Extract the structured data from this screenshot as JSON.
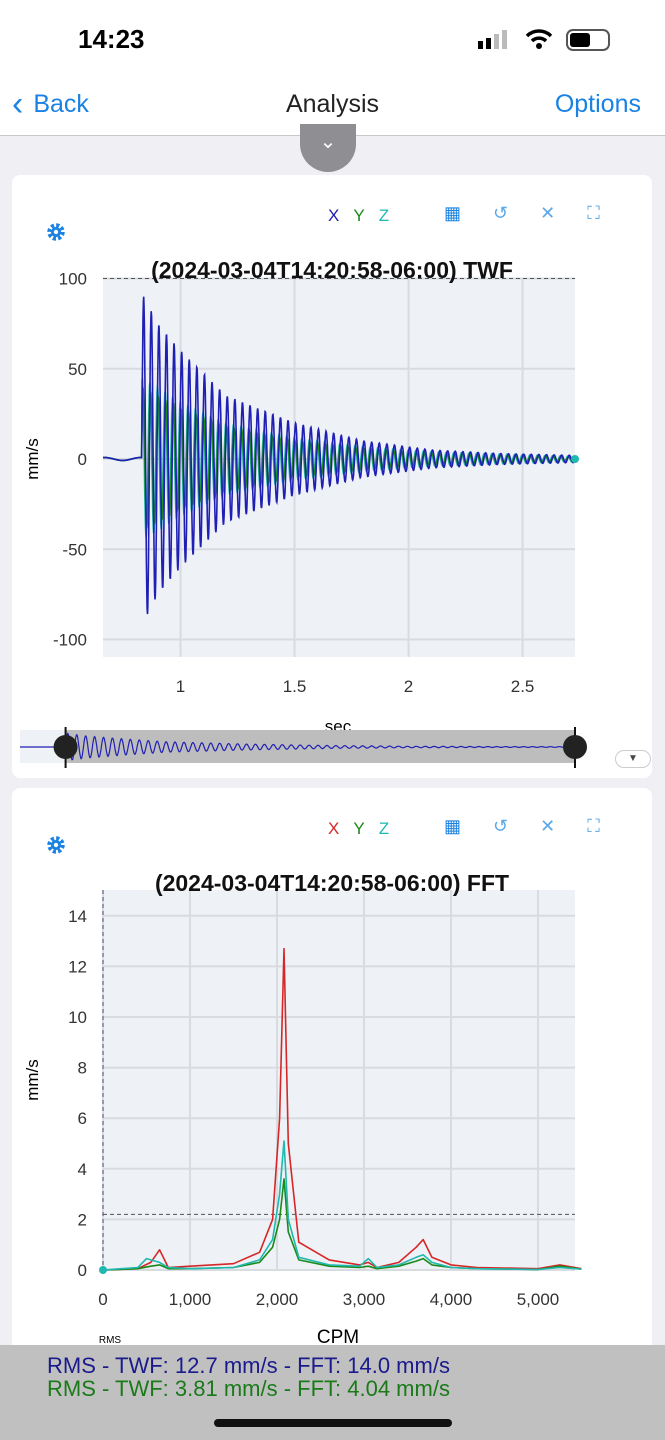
{
  "status_bar": {
    "time": "14:23"
  },
  "nav": {
    "back_label": "Back",
    "title": "Analysis",
    "options_label": "Options"
  },
  "colors": {
    "accent": "#1a82e2",
    "x_twf": "#1f1fb4",
    "x_fft": "#d62728",
    "y": "#1a8a1a",
    "z": "#20b8b0"
  },
  "twf_card": {
    "legend": [
      "X",
      "Y",
      "Z"
    ],
    "tools": [
      "table-icon",
      "reset-icon",
      "close-icon",
      "fullscreen-icon"
    ],
    "chart_data": {
      "type": "line",
      "title": "(2024-03-04T14:20:58-06:00) TWF",
      "xlabel": "sec",
      "ylabel": "mm/s",
      "xlim": [
        0.66,
        2.73
      ],
      "ylim": [
        -100,
        100
      ],
      "xticks": [
        "1",
        "1.5",
        "2",
        "2.5"
      ],
      "yticks": [
        "100",
        "50",
        "0",
        "-50",
        "-100"
      ],
      "reference_line": 100,
      "grid": true,
      "series": [
        {
          "name": "X",
          "color": "#1f1fb4",
          "onset_sec": 0.83,
          "peak_envelope": [
            [
              0.83,
              92
            ],
            [
              0.9,
              75
            ],
            [
              1.0,
              60
            ],
            [
              1.2,
              35
            ],
            [
              1.5,
              20
            ],
            [
              1.8,
              10
            ],
            [
              2.1,
              5
            ],
            [
              2.4,
              3
            ],
            [
              2.73,
              2
            ]
          ]
        },
        {
          "name": "Y",
          "color": "#1a8a1a",
          "onset_sec": 0.83,
          "peak_envelope": [
            [
              0.83,
              40
            ],
            [
              0.9,
              35
            ],
            [
              1.0,
              28
            ],
            [
              1.2,
              18
            ],
            [
              1.5,
              10
            ],
            [
              1.8,
              6
            ],
            [
              2.1,
              3
            ],
            [
              2.73,
              1
            ]
          ]
        },
        {
          "name": "Z",
          "color": "#20b8b0",
          "onset_sec": 0.83,
          "peak_envelope": [
            [
              0.83,
              45
            ],
            [
              0.9,
              40
            ],
            [
              1.0,
              32
            ],
            [
              1.2,
              20
            ],
            [
              1.5,
              12
            ],
            [
              1.8,
              7
            ],
            [
              2.1,
              4
            ],
            [
              2.73,
              1.5
            ]
          ]
        }
      ],
      "range_slider": {
        "from": 0.83,
        "to": 2.73
      }
    }
  },
  "fft_card": {
    "legend": [
      "X",
      "Y",
      "Z"
    ],
    "tools": [
      "table-icon",
      "reset-icon",
      "close-icon",
      "fullscreen-icon"
    ],
    "chart_data": {
      "type": "line",
      "title": "(2024-03-04T14:20:58-06:00) FFT",
      "xlabel": "CPM",
      "ylabel": "mm/s",
      "annotation": "RMS",
      "xlim": [
        0,
        5500
      ],
      "ylim": [
        0,
        14.5
      ],
      "xticks": [
        "0",
        "1,000",
        "2,000",
        "3,000",
        "4,000",
        "5,000"
      ],
      "yticks": [
        "0",
        "2",
        "4",
        "6",
        "8",
        "10",
        "12",
        "14"
      ],
      "rms_line": 2.2,
      "grid": true,
      "series": [
        {
          "name": "X",
          "color": "#d62728",
          "x": [
            0,
            400,
            550,
            650,
            750,
            1000,
            1500,
            1800,
            1950,
            2030,
            2080,
            2130,
            2250,
            2600,
            2950,
            3050,
            3150,
            3400,
            3600,
            3680,
            3780,
            4000,
            4300,
            5000,
            5250,
            5500
          ],
          "y": [
            0,
            0.05,
            0.3,
            0.8,
            0.1,
            0.15,
            0.25,
            0.7,
            2,
            6,
            12.7,
            5,
            1.1,
            0.4,
            0.2,
            0.3,
            0.1,
            0.3,
            0.9,
            1.2,
            0.5,
            0.2,
            0.1,
            0.05,
            0.2,
            0.05
          ]
        },
        {
          "name": "Y",
          "color": "#1a8a1a",
          "x": [
            0,
            400,
            550,
            650,
            750,
            1000,
            1500,
            1800,
            1950,
            2030,
            2080,
            2130,
            2250,
            2600,
            2950,
            3050,
            3150,
            3400,
            3600,
            3680,
            3780,
            4000,
            4300,
            5000,
            5250,
            5500
          ],
          "y": [
            0,
            0.05,
            0.15,
            0.2,
            0.05,
            0.05,
            0.1,
            0.3,
            0.9,
            2,
            3.6,
            1.5,
            0.4,
            0.15,
            0.1,
            0.15,
            0.05,
            0.15,
            0.35,
            0.45,
            0.2,
            0.1,
            0.05,
            0.02,
            0.15,
            0.03
          ]
        },
        {
          "name": "Z",
          "color": "#20b8b0",
          "x": [
            0,
            400,
            500,
            650,
            750,
            1000,
            1500,
            1800,
            1950,
            2030,
            2080,
            2130,
            2250,
            2600,
            2950,
            3050,
            3150,
            3400,
            3600,
            3680,
            3780,
            4000,
            4300,
            5000,
            5250,
            5500
          ],
          "y": [
            0,
            0.1,
            0.45,
            0.3,
            0.1,
            0.05,
            0.1,
            0.4,
            1.2,
            3,
            5.1,
            2,
            0.5,
            0.2,
            0.15,
            0.45,
            0.1,
            0.2,
            0.5,
            0.6,
            0.3,
            0.1,
            0.05,
            0.02,
            0.1,
            0.03
          ]
        }
      ]
    }
  },
  "rms": {
    "line1": "RMS - TWF: 12.7 mm/s - FFT: 14.0 mm/s",
    "line2": "RMS - TWF: 3.81 mm/s - FFT: 4.04 mm/s"
  }
}
